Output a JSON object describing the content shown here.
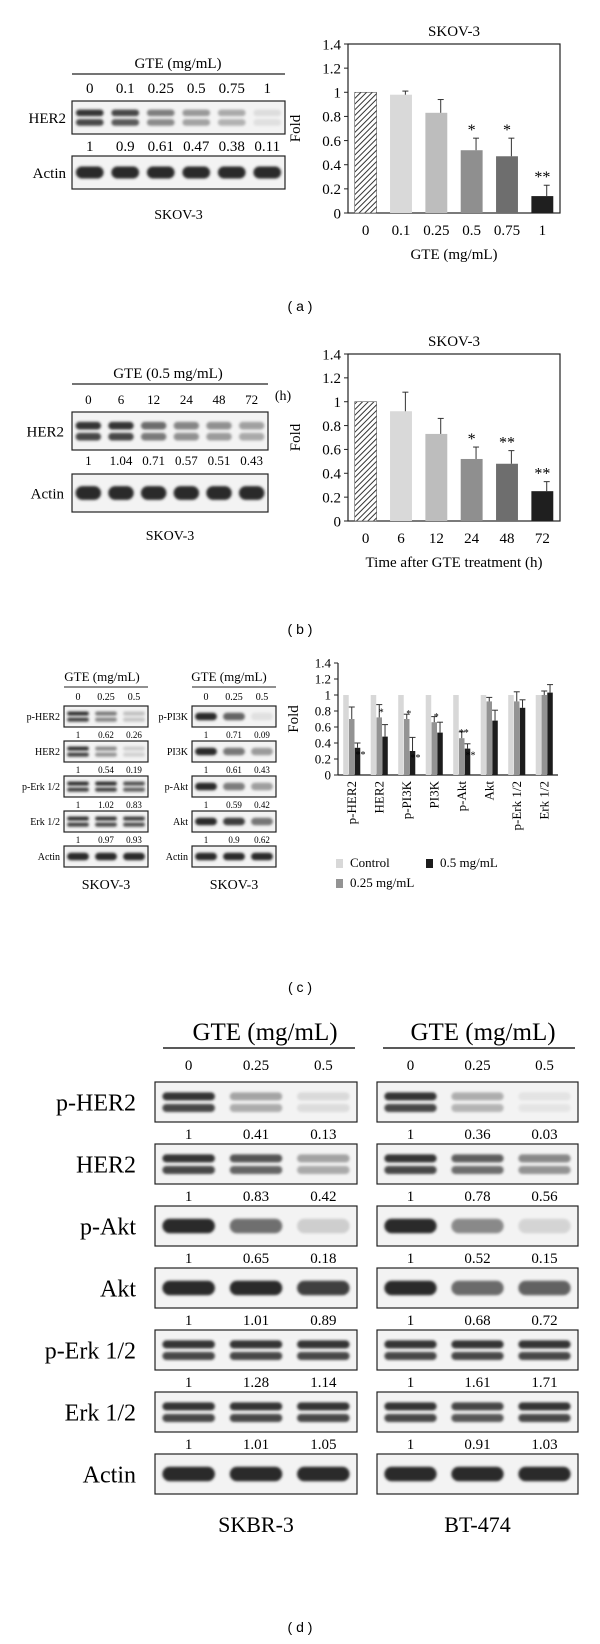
{
  "panel_labels": {
    "a": "( a )",
    "b": "( b )",
    "c": "( c )",
    "d": "( d )"
  },
  "colors": {
    "bar_control": "#ffffff",
    "bar_hatch": "#333333",
    "bar_g1": "#d9d9d9",
    "bar_g2": "#bdbdbd",
    "bar_g3": "#8f8f8f",
    "bar_g4": "#6e6e6e",
    "bar_g5": "#1f1f1f",
    "c_control": "#d8d8d8",
    "c_025": "#939393",
    "c_05": "#1c1c1c",
    "blot_bg": "#f3f3f3",
    "band": "#2b2b2b"
  },
  "blot_a": {
    "header": "GTE (mg/mL)",
    "lanes": [
      "0",
      "0.1",
      "0.25",
      "0.5",
      "0.75",
      "1"
    ],
    "rows": [
      {
        "label": "HER2",
        "quant": [
          "1",
          "0.9",
          "0.61",
          "0.47",
          "0.38",
          "0.11"
        ],
        "intensity": [
          1,
          0.9,
          0.61,
          0.47,
          0.38,
          0.11
        ],
        "double": true
      },
      {
        "label": "Actin",
        "quant": [],
        "intensity": [
          1,
          1,
          1,
          1,
          1,
          1
        ],
        "double": false
      }
    ],
    "cell_line": "SKOV-3"
  },
  "blot_b": {
    "header": "GTE (0.5 mg/mL)",
    "unit": "(h)",
    "lanes": [
      "0",
      "6",
      "12",
      "24",
      "48",
      "72"
    ],
    "rows": [
      {
        "label": "HER2",
        "quant": [
          "1",
          "1.04",
          "0.71",
          "0.57",
          "0.51",
          "0.43"
        ],
        "intensity": [
          1,
          1,
          0.71,
          0.57,
          0.51,
          0.43
        ],
        "double": true
      },
      {
        "label": "Actin",
        "quant": [],
        "intensity": [
          1,
          1,
          1,
          1,
          1,
          1
        ],
        "double": false
      }
    ],
    "cell_line": "SKOV-3"
  },
  "blot_c_left": {
    "header": "GTE (mg/mL)",
    "lanes": [
      "0",
      "0.25",
      "0.5"
    ],
    "rows": [
      {
        "label": "p-HER2",
        "quant": [
          "1",
          "0.62",
          "0.26"
        ],
        "intensity": [
          1,
          0.62,
          0.26
        ],
        "double": true
      },
      {
        "label": "HER2",
        "quant": [
          "1",
          "0.54",
          "0.19"
        ],
        "intensity": [
          1,
          0.54,
          0.19
        ],
        "double": true
      },
      {
        "label": "p-Erk 1/2",
        "quant": [
          "1",
          "1.02",
          "0.83"
        ],
        "intensity": [
          1,
          1,
          0.83
        ],
        "double": true
      },
      {
        "label": "Erk 1/2",
        "quant": [
          "1",
          "0.97",
          "0.93"
        ],
        "intensity": [
          1,
          0.97,
          0.93
        ],
        "double": true
      },
      {
        "label": "Actin",
        "quant": [],
        "intensity": [
          1,
          1,
          1
        ],
        "double": false
      }
    ],
    "cell_line": "SKOV-3"
  },
  "blot_c_right": {
    "header": "GTE (mg/mL)",
    "lanes": [
      "0",
      "0.25",
      "0.5"
    ],
    "rows": [
      {
        "label": "p-PI3K",
        "quant": [
          "1",
          "0.71",
          "0.09"
        ],
        "intensity": [
          1,
          0.71,
          0.09
        ],
        "double": false
      },
      {
        "label": "PI3K",
        "quant": [
          "1",
          "0.61",
          "0.43"
        ],
        "intensity": [
          1,
          0.61,
          0.43
        ],
        "double": false
      },
      {
        "label": "p-Akt",
        "quant": [
          "1",
          "0.59",
          "0.42"
        ],
        "intensity": [
          1,
          0.59,
          0.42
        ],
        "double": false
      },
      {
        "label": "Akt",
        "quant": [
          "1",
          "0.9",
          "0.62"
        ],
        "intensity": [
          1,
          0.9,
          0.62
        ],
        "double": false
      },
      {
        "label": "Actin",
        "quant": [],
        "intensity": [
          1,
          1,
          1
        ],
        "double": false
      }
    ],
    "cell_line": "SKOV-3"
  },
  "blot_d_left": {
    "header": "GTE (mg/mL)",
    "lanes": [
      "0",
      "0.25",
      "0.5"
    ],
    "rows": [
      {
        "label": "p-HER2",
        "quant": [
          "1",
          "0.41",
          "0.13"
        ],
        "intensity": [
          1,
          0.41,
          0.13
        ],
        "double": true
      },
      {
        "label": "HER2",
        "quant": [
          "1",
          "0.83",
          "0.42"
        ],
        "intensity": [
          1,
          0.83,
          0.42
        ],
        "double": true
      },
      {
        "label": "p-Akt",
        "quant": [
          "1",
          "0.65",
          "0.18"
        ],
        "intensity": [
          1,
          0.65,
          0.18
        ],
        "double": false
      },
      {
        "label": "Akt",
        "quant": [
          "1",
          "1.01",
          "0.89"
        ],
        "intensity": [
          1,
          1,
          0.89
        ],
        "double": false
      },
      {
        "label": "p-Erk 1/2",
        "quant": [
          "1",
          "1.28",
          "1.14"
        ],
        "intensity": [
          1,
          1,
          1
        ],
        "double": true
      },
      {
        "label": "Erk 1/2",
        "quant": [
          "1",
          "1.01",
          "1.05"
        ],
        "intensity": [
          1,
          1,
          1
        ],
        "double": true
      },
      {
        "label": "Actin",
        "quant": [],
        "intensity": [
          1,
          1,
          1
        ],
        "double": false
      }
    ],
    "cell_line": "SKBR-3"
  },
  "blot_d_right": {
    "header": "GTE (mg/mL)",
    "lanes": [
      "0",
      "0.25",
      "0.5"
    ],
    "rows": [
      {
        "label": "p-HER2",
        "quant": [
          "1",
          "0.36",
          "0.03"
        ],
        "intensity": [
          1,
          0.36,
          0.03
        ],
        "double": true
      },
      {
        "label": "HER2",
        "quant": [
          "1",
          "0.78",
          "0.56"
        ],
        "intensity": [
          1,
          0.78,
          0.56
        ],
        "double": true
      },
      {
        "label": "p-Akt",
        "quant": [
          "1",
          "0.52",
          "0.15"
        ],
        "intensity": [
          1,
          0.52,
          0.15
        ],
        "double": false
      },
      {
        "label": "Akt",
        "quant": [
          "1",
          "0.68",
          "0.72"
        ],
        "intensity": [
          1,
          0.68,
          0.72
        ],
        "double": false
      },
      {
        "label": "p-Erk 1/2",
        "quant": [
          "1",
          "1.61",
          "1.71"
        ],
        "intensity": [
          1,
          1,
          1
        ],
        "double": true
      },
      {
        "label": "Erk 1/2",
        "quant": [
          "1",
          "0.91",
          "1.03"
        ],
        "intensity": [
          1,
          0.91,
          1
        ],
        "double": true
      },
      {
        "label": "Actin",
        "quant": [],
        "intensity": [
          1,
          1,
          1
        ],
        "double": false
      }
    ],
    "cell_line": "BT-474"
  },
  "chart_data": [
    {
      "id": "a",
      "type": "bar",
      "title": "SKOV-3",
      "xlabel": "GTE (mg/mL)",
      "ylabel": "Fold",
      "ylim": [
        0,
        1.4
      ],
      "yticks": [
        0,
        0.2,
        0.4,
        0.6,
        0.8,
        1,
        1.2,
        1.4
      ],
      "ytick_labels": [
        "0",
        "0.2",
        "0.4",
        "0.6",
        "0.8",
        "1",
        "1.2",
        "1.4"
      ],
      "categories": [
        "0",
        "0.1",
        "0.25",
        "0.5",
        "0.75",
        "1"
      ],
      "values": [
        1.0,
        0.98,
        0.83,
        0.52,
        0.47,
        0.14
      ],
      "errors": [
        0,
        0.03,
        0.11,
        0.1,
        0.15,
        0.09
      ],
      "annotations": [
        "",
        "",
        "",
        "*",
        "*",
        "**"
      ],
      "grid": false
    },
    {
      "id": "b",
      "type": "bar",
      "title": "SKOV-3",
      "xlabel": "Time after GTE treatment (h)",
      "ylabel": "Fold",
      "ylim": [
        0,
        1.4
      ],
      "yticks": [
        0,
        0.2,
        0.4,
        0.6,
        0.8,
        1,
        1.2,
        1.4
      ],
      "ytick_labels": [
        "0",
        "0.2",
        "0.4",
        "0.6",
        "0.8",
        "1",
        "1.2",
        "1.4"
      ],
      "categories": [
        "0",
        "6",
        "12",
        "24",
        "48",
        "72"
      ],
      "values": [
        1.0,
        0.92,
        0.73,
        0.52,
        0.48,
        0.25
      ],
      "errors": [
        0,
        0.16,
        0.13,
        0.1,
        0.11,
        0.08
      ],
      "annotations": [
        "",
        "",
        "",
        "*",
        "**",
        "**"
      ],
      "grid": false
    },
    {
      "id": "c",
      "type": "bar",
      "xlabel": "",
      "ylabel": "Fold",
      "ylim": [
        0,
        1.4
      ],
      "yticks": [
        0,
        0.2,
        0.4,
        0.6,
        0.8,
        1,
        1.2,
        1.4
      ],
      "ytick_labels": [
        "0",
        "0.2",
        "0.4",
        "0.6",
        "0.8",
        "1",
        "1.2",
        "1.4"
      ],
      "categories": [
        "p-HER2",
        "HER2",
        "p-PI3K",
        "PI3K",
        "p-Akt",
        "Akt",
        "p-Erk 1/2",
        "Erk 1/2"
      ],
      "series": [
        {
          "name": "Control",
          "values": [
            1,
            1,
            1,
            1,
            1,
            1,
            1,
            1
          ],
          "errors": [
            0,
            0,
            0,
            0,
            0,
            0,
            0,
            0
          ],
          "annotations": [
            "",
            "",
            "",
            "",
            "",
            "",
            "",
            ""
          ]
        },
        {
          "name": "0.25 mg/mL",
          "values": [
            0.7,
            0.72,
            0.7,
            0.66,
            0.46,
            0.92,
            0.92,
            1.0
          ],
          "errors": [
            0.15,
            0.16,
            0.06,
            0.07,
            0.08,
            0.05,
            0.12,
            0.05
          ],
          "annotations": [
            "",
            "*",
            "*",
            "*",
            "**",
            "",
            "",
            ""
          ]
        },
        {
          "name": "0.5 mg/mL",
          "values": [
            0.34,
            0.48,
            0.3,
            0.53,
            0.33,
            0.68,
            0.84,
            1.03
          ],
          "errors": [
            0.06,
            0.15,
            0.17,
            0.13,
            0.06,
            0.13,
            0.1,
            0.1
          ],
          "annotations": [
            "**",
            "",
            "**",
            "",
            "**",
            "",
            "",
            ""
          ]
        }
      ],
      "legend": {
        "placement": "bottom"
      },
      "grid": false
    }
  ]
}
